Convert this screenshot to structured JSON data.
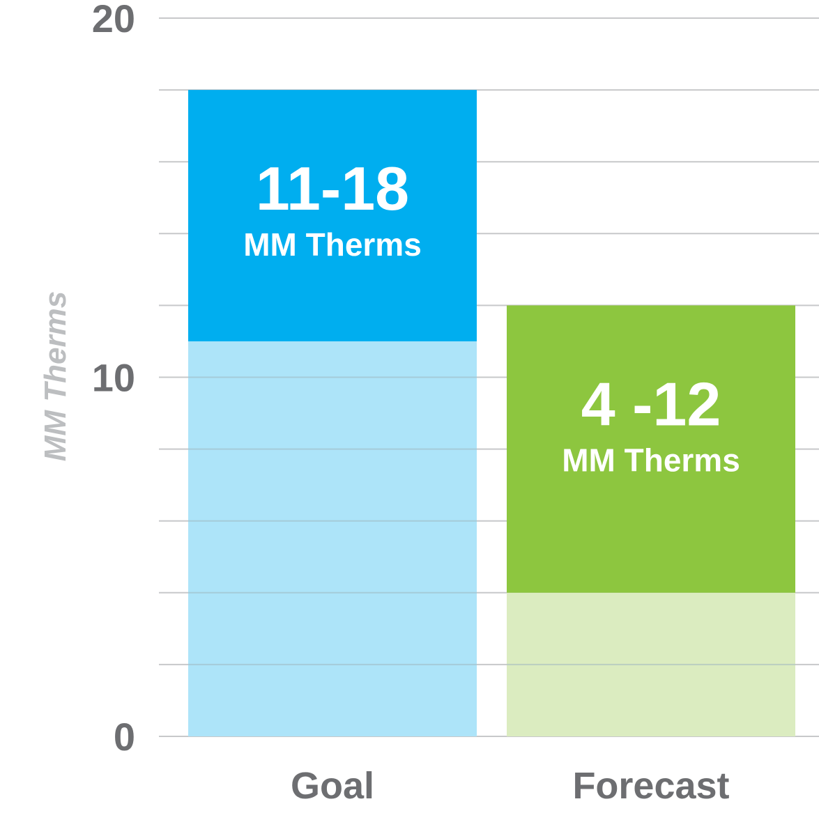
{
  "chart_data": {
    "type": "bar",
    "categories": [
      "Goal",
      "Forecast"
    ],
    "series": [
      {
        "values": [
          [
            11,
            18
          ],
          [
            4,
            12
          ]
        ]
      }
    ],
    "bars": [
      {
        "category": "Goal",
        "low": 11,
        "high": 18,
        "range_label": "11-18",
        "unit_label": "MM Therms",
        "color": "#00aeef",
        "light_color": "#ade4f9"
      },
      {
        "category": "Forecast",
        "low": 4,
        "high": 12,
        "range_label": "4 -12",
        "unit_label": "MM Therms",
        "color": "#8dc63f",
        "light_color": "#dbecc0"
      }
    ],
    "ylabel": "MM Therms",
    "ylim": [
      0,
      20
    ],
    "yticks": [
      0,
      10,
      20
    ],
    "ytick_labels": [
      "0",
      "10",
      "20"
    ],
    "gridline_step": 2,
    "grid": true,
    "colors": {
      "grid": "#c7c8ca",
      "text": "#6d6e71",
      "axis_title": "#bcbec0"
    }
  }
}
